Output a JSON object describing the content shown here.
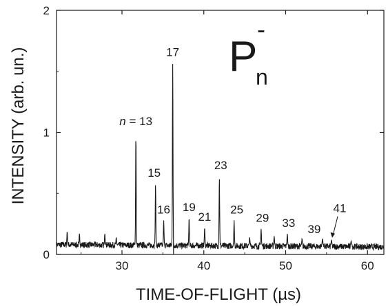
{
  "chart_data": {
    "type": "line",
    "xlabel": "TIME-OF-FLIGHT (µs)",
    "ylabel": "INTENSITY (arb. un.)",
    "xlim": [
      22,
      62
    ],
    "ylim": [
      0,
      2
    ],
    "x_ticks": [
      30,
      40,
      50,
      60
    ],
    "y_ticks": [
      0,
      1,
      2
    ],
    "grid": false,
    "series_color": "#1a1a1a",
    "species": {
      "main": "P",
      "subscript": "n",
      "superscript": "-"
    },
    "baseline": 0.08,
    "peaks": [
      {
        "n": 13,
        "label": "n = 13",
        "x": 31.7,
        "y": 0.98
      },
      {
        "n": 15,
        "label": "15",
        "x": 34.1,
        "y": 0.57
      },
      {
        "n": 16,
        "label": "16",
        "x": 35.1,
        "y": 0.28
      },
      {
        "n": 17,
        "label": "17",
        "x": 36.2,
        "y": 1.57
      },
      {
        "n": 19,
        "label": "19",
        "x": 38.2,
        "y": 0.3
      },
      {
        "n": 21,
        "label": "21",
        "x": 40.1,
        "y": 0.22
      },
      {
        "n": 23,
        "label": "23",
        "x": 41.9,
        "y": 0.63
      },
      {
        "n": 25,
        "label": "25",
        "x": 43.7,
        "y": 0.28
      },
      {
        "n": 29,
        "label": "29",
        "x": 47.0,
        "y": 0.21
      },
      {
        "n": 33,
        "label": "33",
        "x": 50.2,
        "y": 0.17
      },
      {
        "n": 39,
        "label": "39",
        "x": 54.5,
        "y": 0.13
      },
      {
        "n": 41,
        "label": "41",
        "x": 55.6,
        "y": 0.12
      }
    ],
    "minor_peaks": [
      {
        "x": 23.3,
        "y": 0.19
      },
      {
        "x": 24.8,
        "y": 0.17
      },
      {
        "x": 27.9,
        "y": 0.17
      },
      {
        "x": 29.3,
        "y": 0.14
      },
      {
        "x": 45.6,
        "y": 0.14
      },
      {
        "x": 48.6,
        "y": 0.15
      },
      {
        "x": 52.0,
        "y": 0.13
      },
      {
        "x": 58.0,
        "y": 0.11
      }
    ]
  }
}
